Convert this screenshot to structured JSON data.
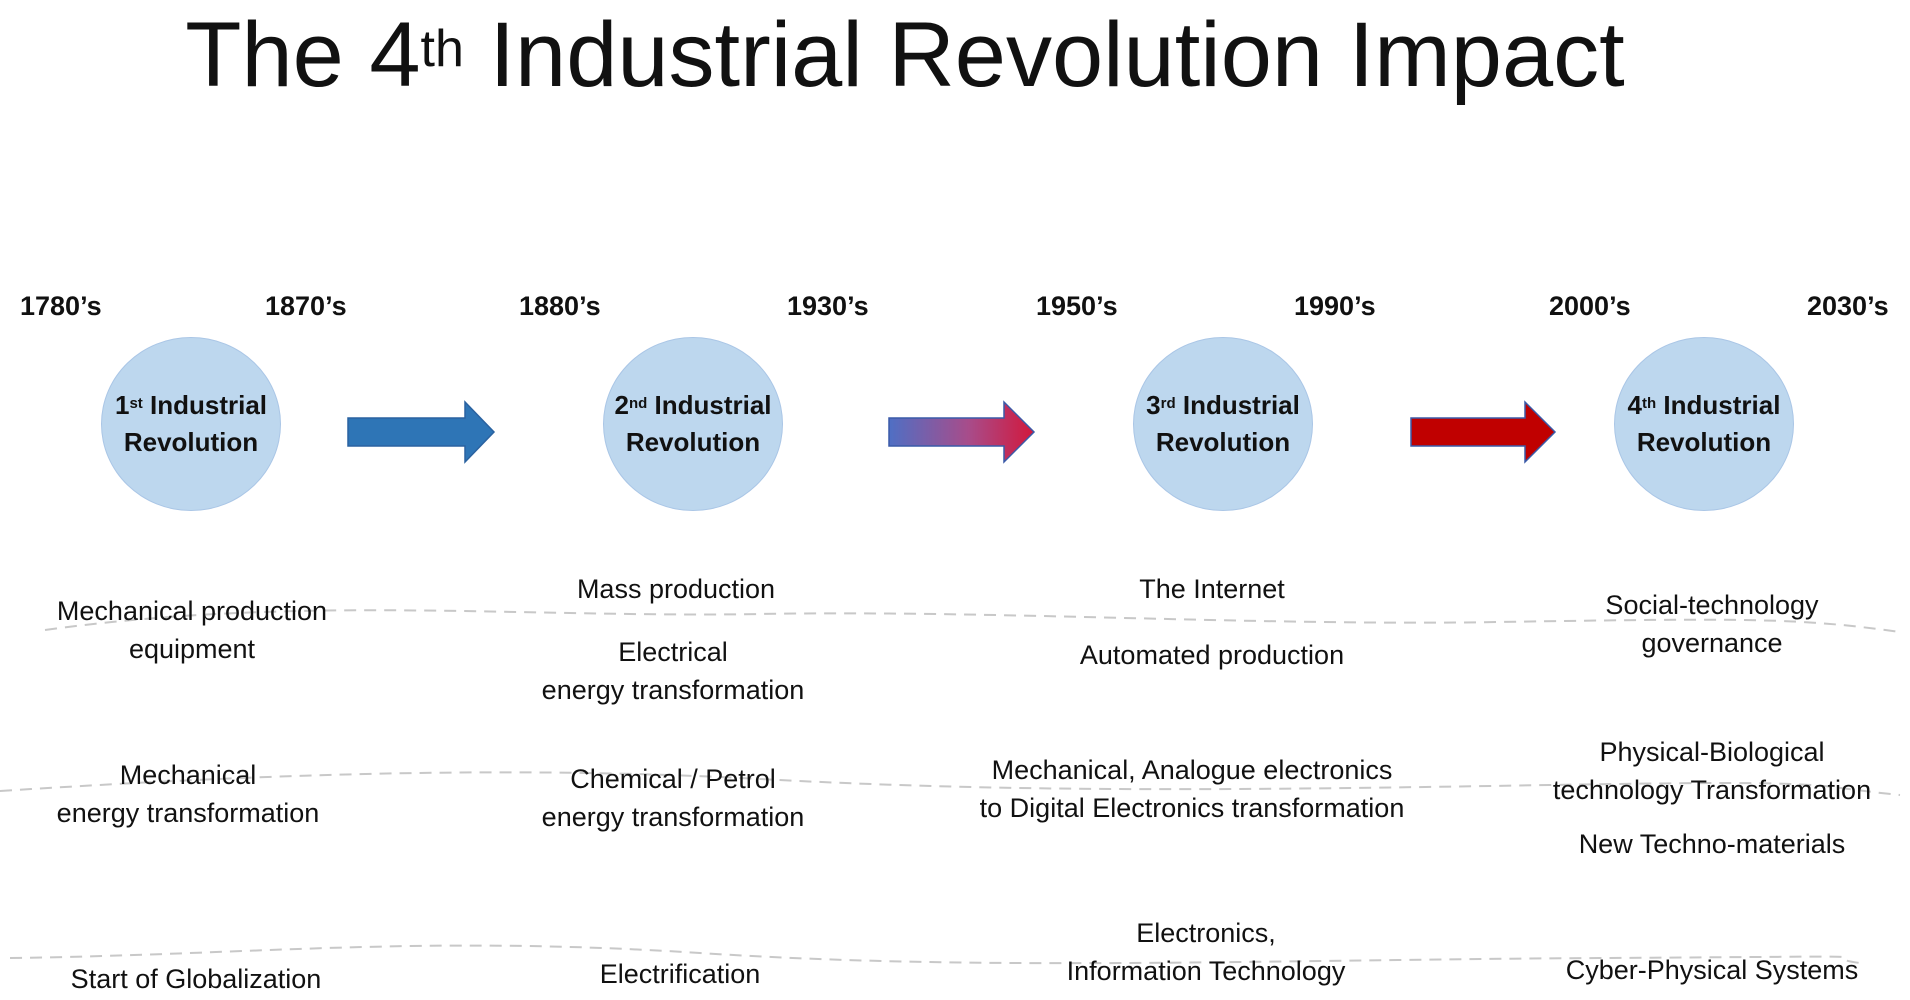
{
  "title": {
    "pre": "The 4",
    "sup": "th",
    "post": " Industrial Revolution Impact"
  },
  "years": [
    "1780’s",
    "1870’s",
    "1880’s",
    "1930’s",
    "1950’s",
    "1990’s",
    "2000’s",
    "2030’s"
  ],
  "revolutions": [
    {
      "num": "1",
      "sup": "st",
      "label": "Industrial",
      "line2": "Revolution"
    },
    {
      "num": "2",
      "sup": "nd",
      "label": " Industrial",
      "line2": "Revolution"
    },
    {
      "num": "3",
      "sup": "rd",
      "label": "Industrial",
      "line2": "Revolution"
    },
    {
      "num": "4",
      "sup": "th",
      "label": "Industrial",
      "line2": "Revolution"
    }
  ],
  "columns": [
    [
      {
        "l1": "Mechanical production",
        "l2": "equipment"
      },
      {
        "l1": "Mechanical",
        "l2": "energy transformation"
      },
      {
        "l1": "Start of Globalization",
        "l2": ""
      }
    ],
    [
      {
        "l1": "Mass production",
        "l2": ""
      },
      {
        "l1": "Electrical",
        "l2": "energy transformation"
      },
      {
        "l1": "Chemical / Petrol",
        "l2": "energy transformation"
      },
      {
        "l1": "Electrification",
        "l2": ""
      }
    ],
    [
      {
        "l1": "The Internet",
        "l2": ""
      },
      {
        "l1": "Automated production",
        "l2": ""
      },
      {
        "l1": "Mechanical, Analogue electronics",
        "l2": "to Digital Electronics  transformation"
      },
      {
        "l1": "Electronics,",
        "l2": "Information Technology"
      }
    ],
    [
      {
        "l1": "Social-technology",
        "l2": "governance"
      },
      {
        "l1": "Physical-Biological",
        "l2": "technology Transformation"
      },
      {
        "l1": "New Techno-materials",
        "l2": ""
      },
      {
        "l1": "Cyber-Physical Systems",
        "l2": ""
      }
    ]
  ],
  "colors": {
    "circle": "#bdd7ee",
    "arrow_blue": "#2e75b6",
    "arrow_red": "#c00000"
  }
}
